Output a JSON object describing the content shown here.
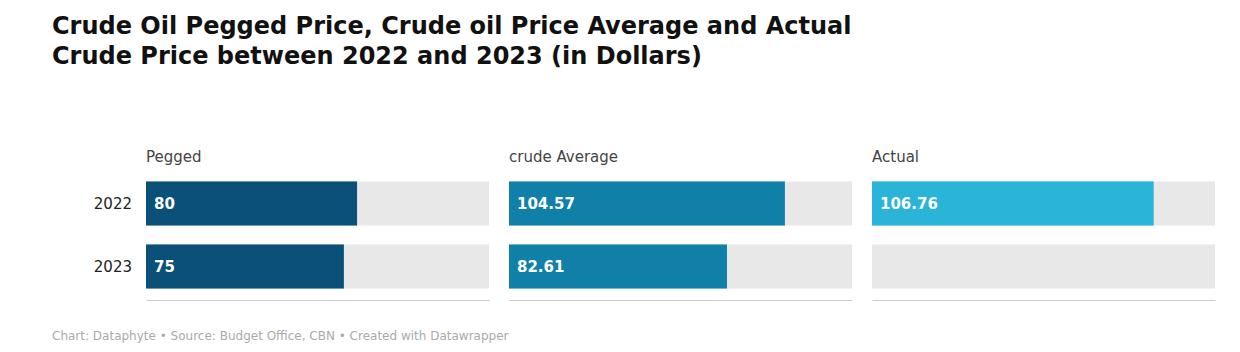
{
  "chart_data": {
    "type": "bar",
    "orientation": "horizontal",
    "title": "Crude Oil Pegged Price, Crude oil Price Average and Actual\nCrude Price between 2022 and 2023 (in Dollars)",
    "subtitle": "Chart: Dataphyte • Source: Budget Office, CBN • Created with Datawrapper",
    "categories": [
      "2022",
      "2023"
    ],
    "series": [
      {
        "name": "Pegged",
        "color": "#0a5078",
        "values": [
          80,
          75
        ]
      },
      {
        "name": "crude Average",
        "color": "#1080a8",
        "values": [
          104.57,
          82.61
        ]
      },
      {
        "name": "Actual",
        "color": "#29b4d8",
        "values": [
          106.76,
          null
        ]
      }
    ],
    "xlim": [
      0,
      130
    ],
    "data_labels": true,
    "tick_labels": false,
    "grid": false
  }
}
